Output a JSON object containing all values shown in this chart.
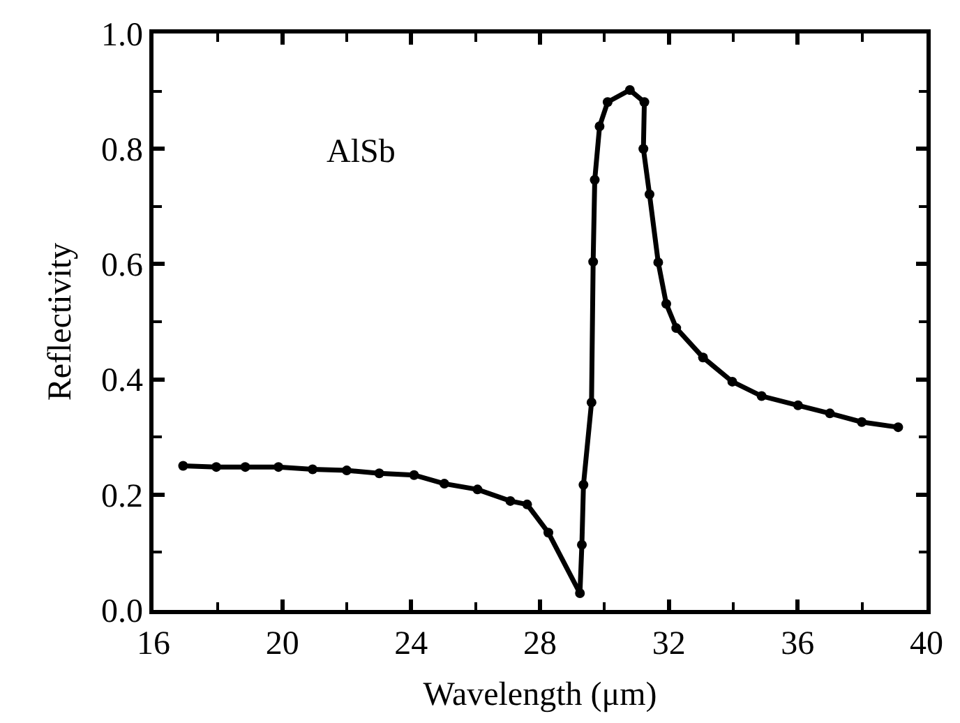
{
  "chart_data": {
    "type": "line",
    "xlabel": "Wavelength (μm)",
    "ylabel": "Reflectivity",
    "annotations": [
      "AlSb"
    ],
    "x": [
      16.92,
      17.95,
      18.85,
      19.88,
      20.94,
      22.0,
      23.01,
      24.09,
      25.03,
      26.06,
      27.08,
      27.6,
      28.26,
      29.24,
      29.3,
      29.35,
      29.6,
      29.65,
      29.7,
      29.85,
      30.1,
      30.79,
      31.24,
      31.21,
      31.4,
      31.67,
      31.92,
      32.23,
      33.06,
      33.97,
      34.88,
      36.01,
      37.0,
      37.99,
      39.12
    ],
    "series": [
      {
        "color": "#000000",
        "values": [
          0.25,
          0.248,
          0.248,
          0.248,
          0.244,
          0.242,
          0.237,
          0.234,
          0.219,
          0.209,
          0.189,
          0.183,
          0.134,
          0.029,
          0.113,
          0.217,
          0.36,
          0.604,
          0.746,
          0.839,
          0.881,
          0.902,
          0.881,
          0.8,
          0.721,
          0.603,
          0.531,
          0.489,
          0.438,
          0.396,
          0.371,
          0.355,
          0.341,
          0.326,
          0.317
        ]
      }
    ],
    "xlim": [
      16,
      40
    ],
    "xticks": [
      16,
      20,
      24,
      28,
      32,
      36,
      40
    ],
    "ylim": [
      0,
      1
    ],
    "yticks": [
      {
        "value": 0,
        "label": "0.0"
      },
      {
        "value": 0.2,
        "label": "0.2"
      },
      {
        "value": 0.4,
        "label": "0.4"
      },
      {
        "value": 0.6,
        "label": "0.6"
      },
      {
        "value": 0.8,
        "label": "0.8"
      },
      {
        "value": 1,
        "label": "1.0"
      }
    ],
    "marker": "circle",
    "line_style": "solid",
    "legend": false
  }
}
